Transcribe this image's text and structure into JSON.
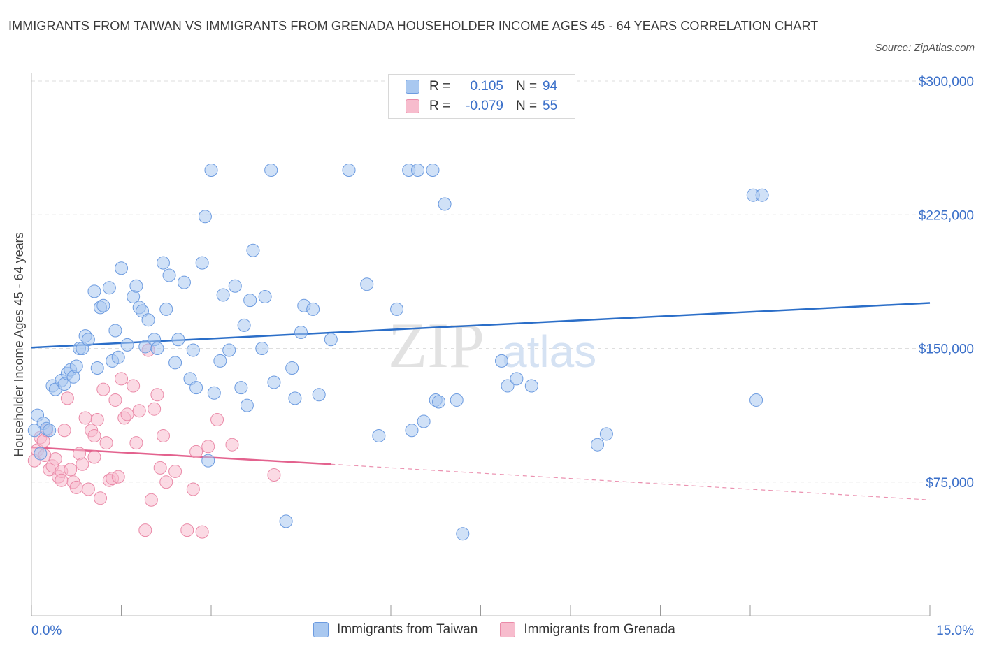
{
  "title": "IMMIGRANTS FROM TAIWAN VS IMMIGRANTS FROM GRENADA HOUSEHOLDER INCOME AGES 45 - 64 YEARS CORRELATION CHART",
  "source": "Source: ZipAtlas.com",
  "watermark": {
    "zip": "ZIP",
    "atlas": "atlas"
  },
  "colors": {
    "taiwan_fill": "#a9c8f0",
    "taiwan_stroke": "#6c9be0",
    "taiwan_line": "#2b6ec8",
    "grenada_fill": "#f7bccd",
    "grenada_stroke": "#ea8aa8",
    "grenada_line": "#e3628e",
    "axis_text": "#3a6fc9",
    "grid": "#dedede"
  },
  "legend": {
    "rows": [
      {
        "r_label": "R =",
        "r_value": "0.105",
        "n_label": "N =",
        "n_value": "94"
      },
      {
        "r_label": "R =",
        "r_value": "-0.079",
        "n_label": "N =",
        "n_value": "55"
      }
    ]
  },
  "chart_data": {
    "type": "scatter",
    "title": "IMMIGRANTS FROM TAIWAN VS IMMIGRANTS FROM GRENADA HOUSEHOLDER INCOME AGES 45 - 64 YEARS CORRELATION CHART",
    "xlabel": "",
    "ylabel": "Householder Income Ages 45 - 64 years",
    "xlim": [
      0,
      15
    ],
    "ylim": [
      0,
      300000
    ],
    "x_tick_labels": [
      "0.0%",
      "15.0%"
    ],
    "y_ticks": [
      75000,
      150000,
      225000,
      300000
    ],
    "y_tick_labels": [
      "$75,000",
      "$150,000",
      "$225,000",
      "$300,000"
    ],
    "grid": true,
    "legend_position": "top-center",
    "series": [
      {
        "name": "Immigrants from Taiwan",
        "r": 0.105,
        "n": 94,
        "trend": {
          "x": [
            0,
            15
          ],
          "y": [
            150500,
            175500
          ],
          "style": "solid"
        },
        "points": [
          [
            0.1,
            112500
          ],
          [
            0.2,
            108000
          ],
          [
            0.25,
            105000
          ],
          [
            0.35,
            129000
          ],
          [
            0.4,
            127000
          ],
          [
            0.5,
            132000
          ],
          [
            0.55,
            130000
          ],
          [
            0.6,
            136000
          ],
          [
            0.65,
            138000
          ],
          [
            0.7,
            134000
          ],
          [
            0.75,
            140000
          ],
          [
            0.8,
            150000
          ],
          [
            0.85,
            150000
          ],
          [
            0.9,
            157000
          ],
          [
            0.95,
            155000
          ],
          [
            1.05,
            182000
          ],
          [
            1.1,
            139000
          ],
          [
            1.15,
            173000
          ],
          [
            1.2,
            174000
          ],
          [
            1.3,
            184000
          ],
          [
            1.35,
            143000
          ],
          [
            1.4,
            160000
          ],
          [
            1.45,
            145000
          ],
          [
            1.5,
            195000
          ],
          [
            1.6,
            152000
          ],
          [
            1.7,
            179000
          ],
          [
            1.75,
            185000
          ],
          [
            1.8,
            173000
          ],
          [
            1.85,
            171000
          ],
          [
            1.9,
            151000
          ],
          [
            1.95,
            166000
          ],
          [
            2.05,
            155000
          ],
          [
            2.1,
            150000
          ],
          [
            2.2,
            198000
          ],
          [
            2.25,
            172000
          ],
          [
            2.3,
            191000
          ],
          [
            2.4,
            142000
          ],
          [
            2.45,
            155000
          ],
          [
            2.55,
            187000
          ],
          [
            2.65,
            133000
          ],
          [
            2.7,
            149000
          ],
          [
            2.75,
            128000
          ],
          [
            2.85,
            198000
          ],
          [
            2.9,
            224000
          ],
          [
            2.95,
            87000
          ],
          [
            3.0,
            250000
          ],
          [
            3.05,
            125000
          ],
          [
            3.15,
            143000
          ],
          [
            3.2,
            180000
          ],
          [
            3.3,
            149000
          ],
          [
            3.4,
            185000
          ],
          [
            3.5,
            128000
          ],
          [
            3.55,
            163000
          ],
          [
            3.6,
            118000
          ],
          [
            3.65,
            177000
          ],
          [
            3.7,
            205000
          ],
          [
            3.85,
            150000
          ],
          [
            3.9,
            179000
          ],
          [
            4.0,
            250000
          ],
          [
            4.05,
            131000
          ],
          [
            4.25,
            53000
          ],
          [
            4.35,
            139000
          ],
          [
            4.4,
            122000
          ],
          [
            4.5,
            159000
          ],
          [
            4.55,
            174000
          ],
          [
            4.7,
            172000
          ],
          [
            4.8,
            124000
          ],
          [
            5.0,
            155000
          ],
          [
            5.3,
            250000
          ],
          [
            5.6,
            186000
          ],
          [
            5.8,
            101000
          ],
          [
            6.1,
            172000
          ],
          [
            6.3,
            250000
          ],
          [
            6.35,
            104000
          ],
          [
            6.45,
            250000
          ],
          [
            6.55,
            109000
          ],
          [
            6.7,
            250000
          ],
          [
            6.75,
            121000
          ],
          [
            6.8,
            120000
          ],
          [
            6.9,
            231000
          ],
          [
            7.1,
            121000
          ],
          [
            7.2,
            46000
          ],
          [
            7.85,
            143000
          ],
          [
            7.95,
            129000
          ],
          [
            8.1,
            133000
          ],
          [
            8.35,
            129000
          ],
          [
            9.45,
            96000
          ],
          [
            9.6,
            102000
          ],
          [
            12.1,
            121000
          ],
          [
            12.05,
            236000
          ],
          [
            12.2,
            236000
          ],
          [
            0.05,
            104000
          ],
          [
            0.15,
            91000
          ],
          [
            0.3,
            104000
          ]
        ]
      },
      {
        "name": "Immigrants from Grenada",
        "r": -0.079,
        "n": 55,
        "trend": {
          "x": [
            0,
            5
          ],
          "y": [
            94500,
            85000
          ],
          "style": "solid"
        },
        "trend_extension": {
          "x": [
            5,
            15
          ],
          "y": [
            85000,
            65000
          ],
          "style": "dashed"
        },
        "points": [
          [
            0.05,
            87000
          ],
          [
            0.1,
            93000
          ],
          [
            0.15,
            100000
          ],
          [
            0.2,
            98000
          ],
          [
            0.25,
            104000
          ],
          [
            0.3,
            82000
          ],
          [
            0.35,
            84000
          ],
          [
            0.4,
            88000
          ],
          [
            0.45,
            78000
          ],
          [
            0.5,
            81000
          ],
          [
            0.55,
            104000
          ],
          [
            0.6,
            122000
          ],
          [
            0.65,
            82000
          ],
          [
            0.7,
            75000
          ],
          [
            0.75,
            72000
          ],
          [
            0.8,
            91000
          ],
          [
            0.85,
            85000
          ],
          [
            0.9,
            111000
          ],
          [
            0.95,
            71000
          ],
          [
            1.0,
            104000
          ],
          [
            1.05,
            89000
          ],
          [
            1.1,
            110000
          ],
          [
            1.15,
            66000
          ],
          [
            1.2,
            127000
          ],
          [
            1.25,
            97000
          ],
          [
            1.3,
            76000
          ],
          [
            1.35,
            77000
          ],
          [
            1.4,
            121000
          ],
          [
            1.45,
            78000
          ],
          [
            1.5,
            133000
          ],
          [
            1.55,
            111000
          ],
          [
            1.6,
            113000
          ],
          [
            1.7,
            129000
          ],
          [
            1.75,
            97000
          ],
          [
            1.8,
            115000
          ],
          [
            1.9,
            48000
          ],
          [
            2.0,
            65000
          ],
          [
            2.05,
            116000
          ],
          [
            2.1,
            124000
          ],
          [
            2.15,
            83000
          ],
          [
            2.2,
            101000
          ],
          [
            2.25,
            75000
          ],
          [
            2.4,
            81000
          ],
          [
            2.6,
            48000
          ],
          [
            2.7,
            71000
          ],
          [
            2.75,
            92000
          ],
          [
            2.85,
            47000
          ],
          [
            2.95,
            95000
          ],
          [
            3.1,
            110000
          ],
          [
            3.35,
            96000
          ],
          [
            4.05,
            79000
          ],
          [
            1.95,
            149000
          ],
          [
            0.22,
            90000
          ],
          [
            0.5,
            76000
          ],
          [
            1.05,
            101000
          ]
        ]
      }
    ]
  },
  "bottom_legend": {
    "taiwan_label": "Immigrants from Taiwan",
    "grenada_label": "Immigrants from Grenada"
  }
}
